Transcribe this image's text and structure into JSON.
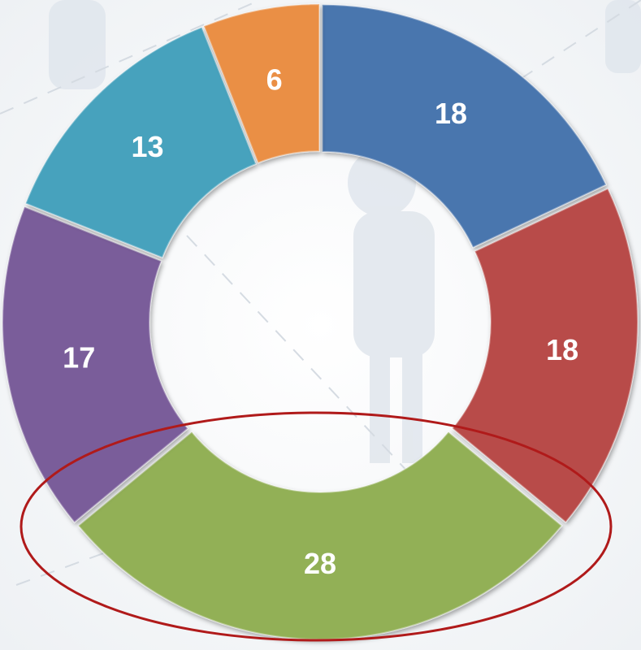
{
  "chart_data": {
    "type": "donut",
    "values": [
      18,
      18,
      28,
      17,
      13,
      6
    ],
    "colors": [
      "#4a76ae",
      "#b84b48",
      "#92b056",
      "#7a5d9a",
      "#46a2bd",
      "#ea8f45"
    ]
  }
}
